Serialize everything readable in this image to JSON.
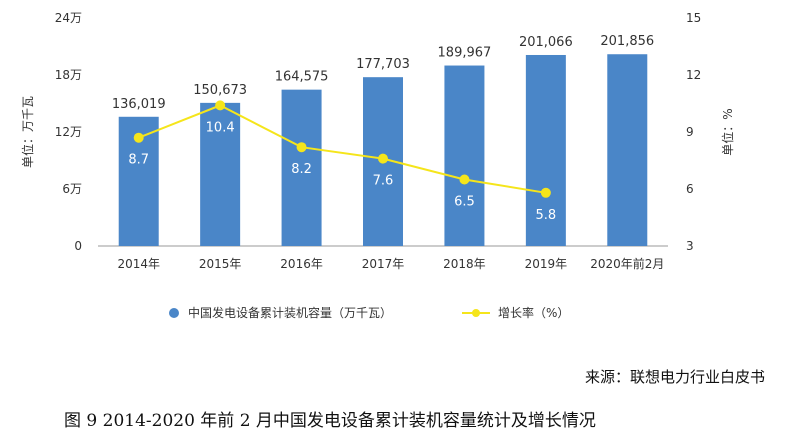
{
  "chart_data": {
    "type": "bar",
    "categories": [
      "2014年",
      "2015年",
      "2016年",
      "2017年",
      "2018年",
      "2019年",
      "2020年前2月"
    ],
    "series": [
      {
        "name": "中国发电设备累计装机容量（万千瓦）",
        "type": "bar",
        "axis": "left",
        "values": [
          136019,
          150673,
          164575,
          177703,
          189967,
          201066,
          201856
        ],
        "labels": [
          "136,019",
          "150,673",
          "164,575",
          "177,703",
          "189,967",
          "201,066",
          "201,856"
        ]
      },
      {
        "name": "增长率（%）",
        "type": "line",
        "axis": "right",
        "values": [
          8.7,
          10.4,
          8.2,
          7.6,
          6.5,
          5.8,
          null
        ],
        "labels": [
          "8.7",
          "10.4",
          "8.2",
          "7.6",
          "6.5",
          "5.8",
          ""
        ]
      }
    ],
    "ylabel": "单位：万千瓦",
    "ylabel_right": "单位：%",
    "ylim": [
      0,
      240000
    ],
    "ylim_right": [
      3,
      15
    ],
    "y_ticks": [
      {
        "value": 0,
        "label": "0"
      },
      {
        "value": 60000,
        "label": "6万"
      },
      {
        "value": 120000,
        "label": "12万"
      },
      {
        "value": 180000,
        "label": "18万"
      },
      {
        "value": 240000,
        "label": "24万"
      }
    ],
    "y_ticks_right": [
      {
        "value": 3,
        "label": "3"
      },
      {
        "value": 6,
        "label": "6"
      },
      {
        "value": 9,
        "label": "9"
      },
      {
        "value": 12,
        "label": "12"
      },
      {
        "value": 15,
        "label": "15"
      }
    ],
    "grid": false,
    "legend_position": "bottom",
    "colors": {
      "bar": "#4a86c8",
      "line": "#f5e51b",
      "axis": "#999999"
    }
  },
  "source_text": "来源：联想电力行业白皮书",
  "caption": "图 9 2014-2020 年前 2 月中国发电设备累计装机容量统计及增长情况"
}
